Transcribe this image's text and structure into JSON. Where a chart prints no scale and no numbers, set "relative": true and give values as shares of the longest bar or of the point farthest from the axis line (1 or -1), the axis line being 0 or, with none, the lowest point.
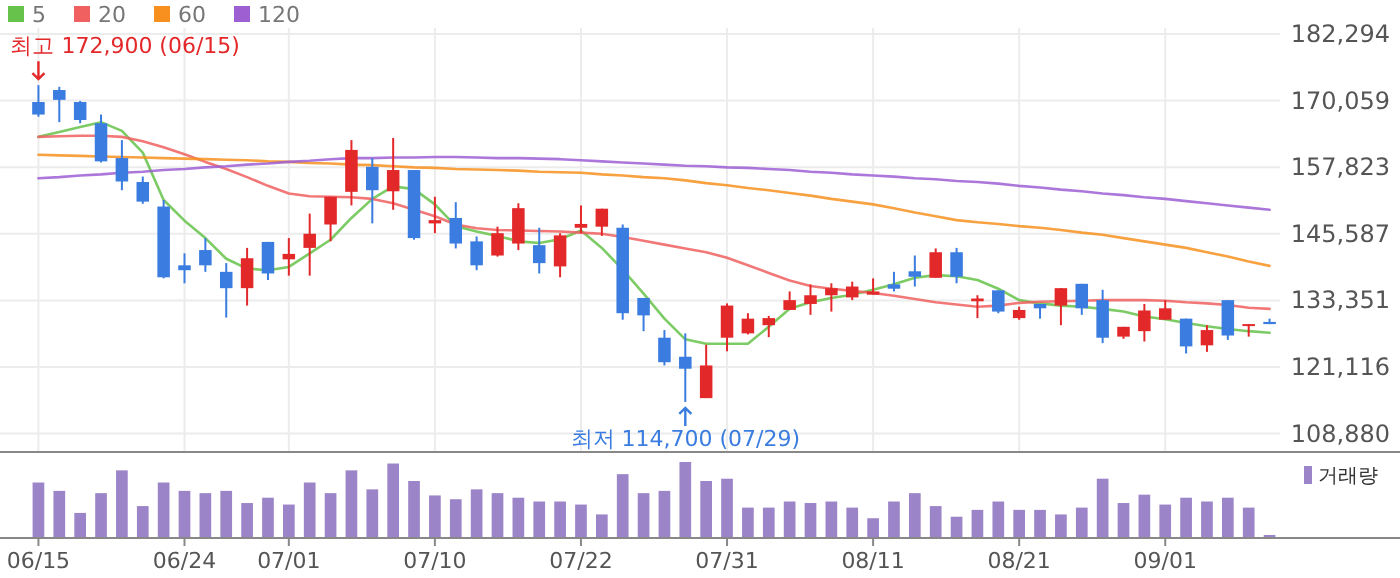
{
  "chart_data": [
    {
      "type": "candlestick",
      "categories": [
        null,
        null,
        null,
        null,
        null,
        null,
        null,
        null,
        null,
        null,
        null,
        null,
        null,
        null,
        null,
        null,
        null,
        null,
        null,
        null,
        null,
        null,
        null,
        null,
        null,
        null,
        null,
        null,
        null,
        null,
        null,
        null,
        null,
        null,
        null,
        null,
        null,
        null,
        null,
        null,
        null,
        null,
        null,
        null,
        null,
        null,
        null,
        null,
        null,
        null,
        null,
        null,
        null,
        null,
        null,
        null,
        null,
        null,
        null,
        null
      ],
      "ohlc": [
        [
          169800,
          172900,
          167100,
          167500
        ],
        [
          172000,
          172600,
          166100,
          170200
        ],
        [
          169800,
          170000,
          165900,
          166500
        ],
        [
          165900,
          167500,
          158700,
          158900
        ],
        [
          159500,
          162800,
          153600,
          155200
        ],
        [
          155100,
          156100,
          151100,
          151500
        ],
        [
          150600,
          151800,
          137400,
          137600
        ],
        [
          139800,
          142000,
          136500,
          138900
        ],
        [
          142600,
          144800,
          138600,
          139800
        ],
        [
          138600,
          140200,
          130200,
          135600
        ],
        [
          135600,
          143000,
          132400,
          141100
        ],
        [
          144100,
          144100,
          137100,
          138300
        ],
        [
          140900,
          144800,
          137900,
          141900
        ],
        [
          143000,
          149300,
          137900,
          145600
        ],
        [
          147300,
          152400,
          144200,
          152400
        ],
        [
          153300,
          162800,
          150800,
          161000
        ],
        [
          157900,
          159500,
          147500,
          153600
        ],
        [
          153400,
          163200,
          150000,
          157300
        ],
        [
          157300,
          157300,
          144500,
          144800
        ],
        [
          147500,
          152400,
          145700,
          148100
        ],
        [
          148500,
          151400,
          142900,
          143800
        ],
        [
          144200,
          145100,
          138900,
          139800
        ],
        [
          141600,
          146900,
          141400,
          145700
        ],
        [
          143800,
          151200,
          142600,
          150300
        ],
        [
          143500,
          146700,
          138300,
          140200
        ],
        [
          139600,
          145700,
          137600,
          145300
        ],
        [
          146700,
          150800,
          145700,
          147400
        ],
        [
          146900,
          150200,
          145200,
          150200
        ],
        [
          146700,
          147300,
          129800,
          131000
        ],
        [
          133800,
          133800,
          127700,
          130600
        ],
        [
          126500,
          127900,
          121400,
          122000
        ],
        [
          123000,
          127300,
          114700,
          120800
        ],
        [
          115400,
          125200,
          115400,
          121400
        ],
        [
          126500,
          132800,
          124000,
          132400
        ],
        [
          127300,
          131000,
          127100,
          130000
        ],
        [
          128800,
          130500,
          126600,
          130100
        ],
        [
          131600,
          135000,
          131600,
          133400
        ],
        [
          132700,
          136300,
          130700,
          134300
        ],
        [
          134300,
          136500,
          131300,
          135600
        ],
        [
          133900,
          136800,
          133400,
          135900
        ],
        [
          134400,
          137400,
          134400,
          135000
        ],
        [
          136300,
          138600,
          135000,
          135500
        ],
        [
          138700,
          141600,
          135900,
          137700
        ],
        [
          137500,
          142900,
          137500,
          142200
        ],
        [
          142200,
          143000,
          136500,
          137700
        ],
        [
          133200,
          134300,
          130100,
          133700
        ],
        [
          135200,
          135200,
          131000,
          131300
        ],
        [
          130100,
          132200,
          129800,
          131600
        ],
        [
          132700,
          132700,
          130000,
          131900
        ],
        [
          132400,
          135600,
          128800,
          135600
        ],
        [
          136400,
          136400,
          130700,
          131900
        ],
        [
          133400,
          135300,
          125500,
          126500
        ],
        [
          126700,
          128500,
          126300,
          128500
        ],
        [
          127700,
          132700,
          125800,
          131500
        ],
        [
          129800,
          133400,
          129800,
          131900
        ],
        [
          130000,
          130000,
          123600,
          124900
        ],
        [
          125100,
          128800,
          123900,
          127900
        ],
        [
          133400,
          133400,
          126100,
          126900
        ],
        [
          128700,
          129000,
          126700,
          129000
        ],
        [
          129400,
          130000,
          129000,
          129000
        ]
      ],
      "colors": [
        "#3a7ce0",
        "#3a7ce0",
        "#3a7ce0",
        "#3a7ce0",
        "#3a7ce0",
        "#3a7ce0",
        "#3a7ce0",
        "#3a7ce0",
        "#3a7ce0",
        "#3a7ce0",
        "#e3282a",
        "#3a7ce0",
        "#e3282a",
        "#e3282a",
        "#e3282a",
        "#e3282a",
        "#3a7ce0",
        "#e3282a",
        "#3a7ce0",
        "#e3282a",
        "#3a7ce0",
        "#3a7ce0",
        "#e3282a",
        "#e3282a",
        "#3a7ce0",
        "#e3282a",
        "#e3282a",
        "#e3282a",
        "#3a7ce0",
        "#3a7ce0",
        "#3a7ce0",
        "#3a7ce0",
        "#e3282a",
        "#e3282a",
        "#e3282a",
        "#e3282a",
        "#e3282a",
        "#e3282a",
        "#e3282a",
        "#e3282a",
        "#e3282a",
        "#3a7ce0",
        "#3a7ce0",
        "#e3282a",
        "#3a7ce0",
        "#e3282a",
        "#3a7ce0",
        "#e3282a",
        "#3a7ce0",
        "#e3282a",
        "#3a7ce0",
        "#3a7ce0",
        "#e3282a",
        "#e3282a",
        "#e3282a",
        "#3a7ce0",
        "#e3282a",
        "#3a7ce0",
        "#e3282a",
        "#3a7ce0"
      ],
      "series": [
        {
          "type": "line",
          "name": "5",
          "color": "#66c24a",
          "values": [
            163400,
            164300,
            165200,
            166100,
            164500,
            160500,
            151800,
            148000,
            144800,
            141000,
            139200,
            138900,
            139500,
            142000,
            144500,
            148500,
            152000,
            154300,
            153800,
            151000,
            147000,
            146000,
            145200,
            144200,
            143900,
            144600,
            146200,
            143000,
            139000,
            134600,
            130000,
            126200,
            125400,
            125400,
            125400,
            128500,
            131800,
            133000,
            133800,
            134400,
            135300,
            136300,
            137500,
            138000,
            137800,
            137100,
            135500,
            133400,
            132800,
            132400,
            132200,
            131800,
            131300,
            130400,
            129900,
            129200,
            128600,
            128100,
            127700,
            127400
          ]
        },
        {
          "type": "line",
          "name": "20",
          "color": "#f06060",
          "values": [
            163400,
            163500,
            163600,
            163600,
            163400,
            162600,
            161500,
            160200,
            158800,
            157500,
            156000,
            154400,
            153000,
            152500,
            152400,
            152300,
            152000,
            151200,
            150000,
            148800,
            147300,
            146600,
            146300,
            146200,
            146100,
            146000,
            145800,
            145600,
            145000,
            144300,
            143600,
            142900,
            142200,
            141200,
            139800,
            138400,
            137000,
            136000,
            135500,
            135100,
            134700,
            134200,
            133600,
            133000,
            132600,
            132200,
            132400,
            132900,
            133100,
            133200,
            133300,
            133400,
            133400,
            133400,
            133300,
            133000,
            132800,
            132500,
            132000,
            131800
          ]
        },
        {
          "type": "line",
          "name": "60",
          "color": "#f7901e",
          "values": [
            160100,
            160000,
            159900,
            159800,
            159700,
            159600,
            159500,
            159400,
            159300,
            159200,
            159100,
            158900,
            158800,
            158600,
            158500,
            158300,
            158200,
            158000,
            157800,
            157700,
            157500,
            157400,
            157300,
            157200,
            157000,
            156900,
            156800,
            156500,
            156300,
            156000,
            155800,
            155400,
            154900,
            154500,
            154000,
            153600,
            153100,
            152600,
            152000,
            151500,
            151000,
            150300,
            149500,
            148800,
            148100,
            147700,
            147400,
            147000,
            146700,
            146300,
            145800,
            145400,
            144800,
            144200,
            143600,
            143000,
            142200,
            141400,
            140500,
            139700
          ]
        },
        {
          "type": "line",
          "name": "120",
          "color": "#9e5fd3",
          "values": [
            155800,
            156000,
            156300,
            156500,
            156800,
            157000,
            157300,
            157500,
            157800,
            158000,
            158300,
            158500,
            158800,
            159000,
            159300,
            159500,
            159500,
            159600,
            159600,
            159700,
            159700,
            159600,
            159500,
            159500,
            159400,
            159300,
            159100,
            158900,
            158700,
            158500,
            158300,
            158100,
            158000,
            157800,
            157700,
            157500,
            157300,
            157000,
            156800,
            156500,
            156300,
            156100,
            155800,
            155600,
            155300,
            155100,
            154800,
            154400,
            154100,
            153700,
            153400,
            153000,
            152700,
            152300,
            152000,
            151600,
            151200,
            150800,
            150400,
            150000
          ]
        }
      ],
      "ylim": [
        105500,
        183400
      ],
      "yticks": [
        {
          "value": 108880,
          "label": "108,880"
        },
        {
          "value": 121116,
          "label": "121,116"
        },
        {
          "value": 133351,
          "label": "133,351"
        },
        {
          "value": 145587,
          "label": "145,587"
        },
        {
          "value": 157823,
          "label": "157,823"
        },
        {
          "value": 170059,
          "label": "170,059"
        },
        {
          "value": 182294,
          "label": "182,294"
        }
      ],
      "grid": true,
      "legend": "top left",
      "tick_labels": "y",
      "annotations": [
        "최고 172,900 (06/15)",
        "최저 114,700 (07/29)"
      ]
    },
    {
      "type": "bar",
      "relative": true,
      "categories": [
        "06/15",
        null,
        null,
        null,
        null,
        null,
        null,
        "06/24",
        null,
        null,
        null,
        null,
        "07/01",
        null,
        null,
        null,
        null,
        null,
        null,
        "07/10",
        null,
        null,
        null,
        null,
        null,
        null,
        "07/22",
        null,
        null,
        null,
        null,
        null,
        null,
        "07/31",
        null,
        null,
        null,
        null,
        null,
        null,
        "08/11",
        null,
        null,
        null,
        null,
        null,
        null,
        "08/21",
        null,
        null,
        null,
        null,
        null,
        null,
        "09/01",
        null,
        null,
        null,
        null,
        null
      ],
      "series": [
        {
          "name": "거래량",
          "color": "#9c84c8",
          "values": [
            0.73,
            0.62,
            0.33,
            0.59,
            0.89,
            0.42,
            0.73,
            0.62,
            0.59,
            0.62,
            0.46,
            0.53,
            0.44,
            0.73,
            0.59,
            0.89,
            0.64,
            0.98,
            0.75,
            0.56,
            0.51,
            0.64,
            0.59,
            0.53,
            0.48,
            0.48,
            0.44,
            0.31,
            0.84,
            0.59,
            0.62,
            1,
            0.75,
            0.78,
            0.4,
            0.4,
            0.48,
            0.46,
            0.48,
            0.4,
            0.26,
            0.48,
            0.59,
            0.42,
            0.28,
            0.37,
            0.48,
            0.37,
            0.37,
            0.31,
            0.4,
            0.78,
            0.46,
            0.57,
            0.44,
            0.53,
            0.48,
            0.53,
            0.4,
            0.04
          ]
        }
      ],
      "legend": "top right",
      "tick_labels": "x"
    }
  ]
}
